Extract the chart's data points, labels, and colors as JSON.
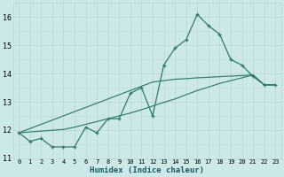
{
  "x": [
    0,
    1,
    2,
    3,
    4,
    5,
    6,
    7,
    8,
    9,
    10,
    11,
    12,
    13,
    14,
    15,
    16,
    17,
    18,
    19,
    20,
    21,
    22,
    23
  ],
  "y_main": [
    11.9,
    11.6,
    11.7,
    11.4,
    11.4,
    11.4,
    12.1,
    11.9,
    12.4,
    12.4,
    13.3,
    13.5,
    12.5,
    14.3,
    14.9,
    15.2,
    16.1,
    15.7,
    15.4,
    14.5,
    14.3,
    13.9,
    13.6,
    13.6
  ],
  "y_trend1": [
    11.9,
    12.05,
    12.2,
    12.35,
    12.5,
    12.65,
    12.8,
    12.95,
    13.1,
    13.25,
    13.4,
    13.55,
    13.7,
    13.75,
    13.8,
    13.82,
    13.85,
    13.87,
    13.89,
    13.91,
    13.93,
    13.95,
    13.6,
    13.6
  ],
  "y_trend2": [
    11.9,
    11.93,
    11.96,
    11.99,
    12.02,
    12.1,
    12.2,
    12.3,
    12.4,
    12.5,
    12.6,
    12.72,
    12.85,
    12.98,
    13.1,
    13.25,
    13.4,
    13.52,
    13.65,
    13.75,
    13.85,
    13.95,
    13.6,
    13.6
  ],
  "line_color": "#2d7d6e",
  "bg_color": "#cce8e8",
  "grid_major_color": "#b8d4d4",
  "grid_minor_color": "#c8e0e0",
  "xlabel": "Humidex (Indice chaleur)",
  "ylim": [
    11.0,
    16.5
  ],
  "xlim": [
    -0.5,
    23.5
  ],
  "yticks": [
    11,
    12,
    13,
    14,
    15,
    16
  ],
  "xticks": [
    0,
    1,
    2,
    3,
    4,
    5,
    6,
    7,
    8,
    9,
    10,
    11,
    12,
    13,
    14,
    15,
    16,
    17,
    18,
    19,
    20,
    21,
    22,
    23
  ]
}
